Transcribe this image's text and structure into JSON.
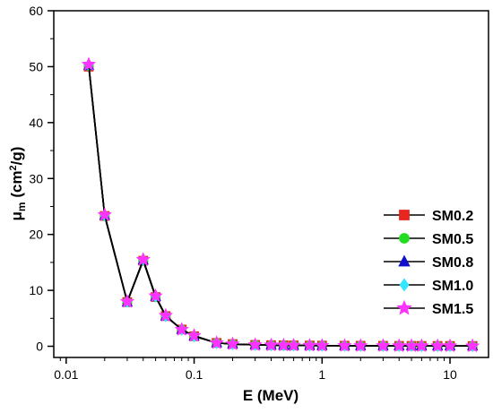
{
  "chart_data": {
    "type": "line",
    "xlabel": "E (MeV)",
    "ylabel_main": "μ",
    "ylabel_sub": "m",
    "ylabel_unit_prefix": " (cm",
    "ylabel_unit_sup": "2",
    "ylabel_unit_suffix": "/g)",
    "xscale": "log",
    "xlim": [
      0.008,
      20
    ],
    "ylim": [
      -2,
      60
    ],
    "x_ticks": [
      0.01,
      0.1,
      1,
      10
    ],
    "x_tick_labels": [
      "0.01",
      "0.1",
      "1",
      "10"
    ],
    "y_ticks": [
      0,
      10,
      20,
      30,
      40,
      50,
      60
    ],
    "y_tick_labels": [
      "0",
      "10",
      "20",
      "30",
      "40",
      "50",
      "60"
    ],
    "grid": false,
    "legend_position": "right",
    "x": [
      0.015,
      0.02,
      0.03,
      0.04,
      0.05,
      0.06,
      0.08,
      0.1,
      0.15,
      0.2,
      0.3,
      0.4,
      0.5,
      0.6,
      0.8,
      1,
      1.5,
      2,
      3,
      4,
      5,
      6,
      8,
      10,
      15
    ],
    "series": [
      {
        "name": "SM0.2",
        "color": "#e8251f",
        "marker": "square",
        "values": [
          50.0,
          23.3,
          7.9,
          15.3,
          8.8,
          5.4,
          3.0,
          1.8,
          0.6,
          0.4,
          0.25,
          0.2,
          0.18,
          0.16,
          0.14,
          0.12,
          0.1,
          0.09,
          0.08,
          0.07,
          0.07,
          0.06,
          0.06,
          0.06,
          0.05
        ]
      },
      {
        "name": "SM0.5",
        "color": "#22dd22",
        "marker": "circle",
        "values": [
          50.1,
          23.3,
          7.9,
          15.3,
          8.8,
          5.4,
          3.0,
          1.8,
          0.6,
          0.4,
          0.25,
          0.2,
          0.18,
          0.16,
          0.14,
          0.12,
          0.1,
          0.09,
          0.08,
          0.07,
          0.07,
          0.06,
          0.06,
          0.06,
          0.05
        ]
      },
      {
        "name": "SM0.8",
        "color": "#1010cc",
        "marker": "triangle",
        "values": [
          50.2,
          23.4,
          7.9,
          15.4,
          8.9,
          5.4,
          3.0,
          1.8,
          0.6,
          0.4,
          0.25,
          0.2,
          0.18,
          0.16,
          0.14,
          0.12,
          0.1,
          0.09,
          0.08,
          0.07,
          0.07,
          0.06,
          0.06,
          0.06,
          0.05
        ]
      },
      {
        "name": "SM1.0",
        "color": "#33e6ff",
        "marker": "diamond",
        "values": [
          50.3,
          23.4,
          8.0,
          15.4,
          8.9,
          5.4,
          3.0,
          1.8,
          0.6,
          0.4,
          0.25,
          0.2,
          0.18,
          0.16,
          0.14,
          0.12,
          0.1,
          0.09,
          0.08,
          0.07,
          0.07,
          0.06,
          0.06,
          0.06,
          0.05
        ]
      },
      {
        "name": "SM1.5",
        "color": "#ff33ff",
        "marker": "star",
        "values": [
          50.4,
          23.5,
          8.0,
          15.5,
          9.0,
          5.5,
          3.0,
          1.9,
          0.6,
          0.4,
          0.25,
          0.2,
          0.18,
          0.16,
          0.14,
          0.12,
          0.1,
          0.09,
          0.08,
          0.07,
          0.07,
          0.06,
          0.06,
          0.06,
          0.05
        ]
      }
    ]
  }
}
